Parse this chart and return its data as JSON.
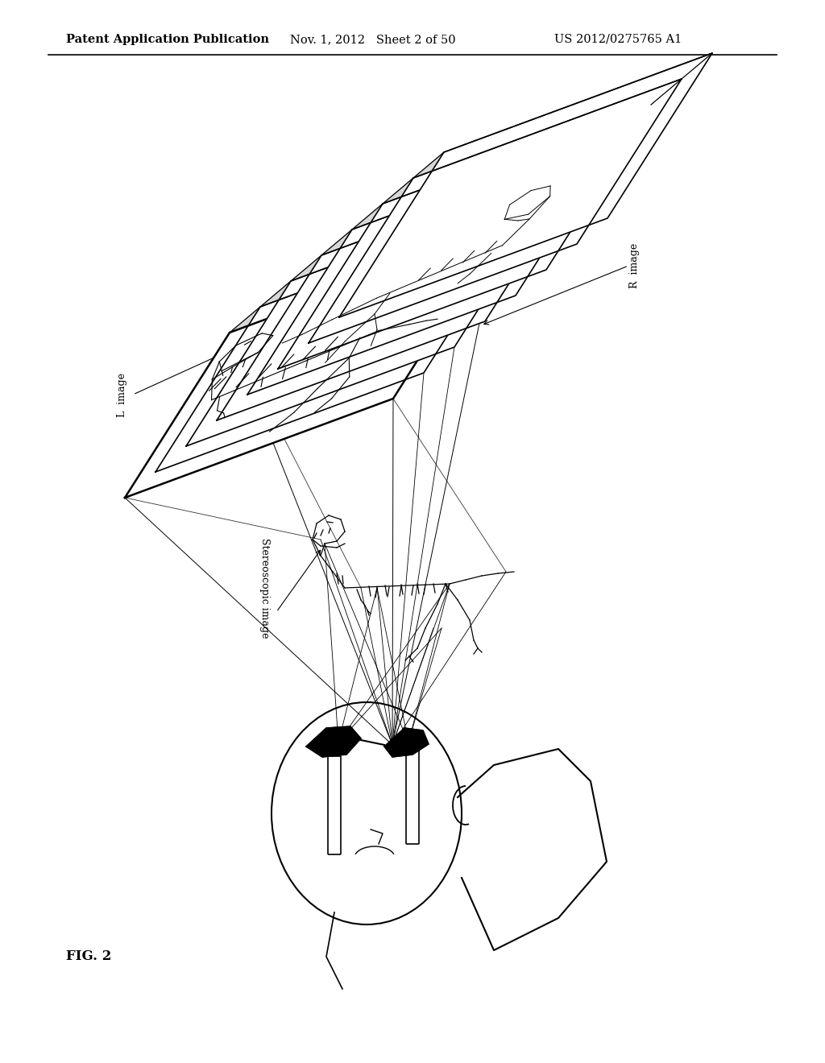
{
  "title_left": "Patent Application Publication",
  "title_mid": "Nov. 1, 2012   Sheet 2 of 50",
  "title_right": "US 2012/0275765 A1",
  "fig_label": "FIG. 2",
  "label_L": "L  image",
  "label_R": "R  image",
  "label_stereo": "Stereoscopic image",
  "bg_color": "#ffffff",
  "line_color": "#000000",
  "text_color": "#000000",
  "header_fontsize": 10.5,
  "label_fontsize": 9,
  "fig_label_fontsize": 12
}
